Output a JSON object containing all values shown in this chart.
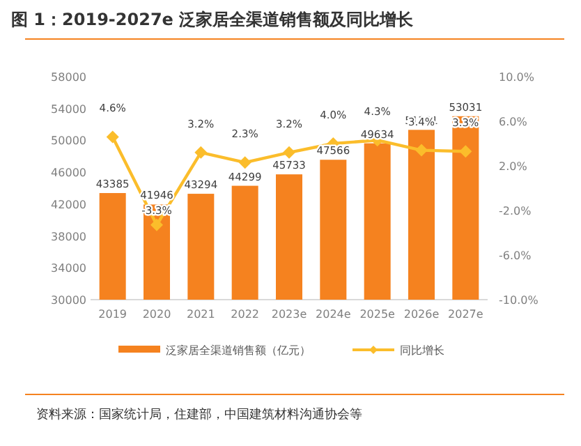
{
  "chart_data": {
    "type": "bar",
    "title": "图 1：2019-2027e 泛家居全渠道销售额及同比增长",
    "categories": [
      "2019",
      "2020",
      "2021",
      "2022",
      "2023e",
      "2024e",
      "2025e",
      "2026e",
      "2027e"
    ],
    "series": [
      {
        "name": "泛家居全渠道销售额（亿元）",
        "color": "#f5821f",
        "values": [
          43385,
          41946,
          43294,
          44299,
          45733,
          47566,
          49634,
          51321,
          53031
        ],
        "data_labels": true
      },
      {
        "name": "同比增长",
        "type": "line",
        "axis": "y2",
        "color": "#fbbd2b",
        "marker": "diamond",
        "values": [
          4.6,
          -3.3,
          3.2,
          2.3,
          3.2,
          4.0,
          4.3,
          3.4,
          3.3
        ],
        "value_labels": [
          "4.6%",
          "-3.3%",
          "3.2%",
          "2.3%",
          "3.2%",
          "4.0%",
          "4.3%",
          "3.4%",
          "3.3%"
        ]
      }
    ],
    "ylim": [
      30000,
      58000
    ],
    "yticks": [
      30000,
      34000,
      38000,
      42000,
      46000,
      50000,
      54000,
      58000
    ],
    "y2lim": [
      -10,
      10
    ],
    "y2ticks": [
      {
        "value": -10,
        "label": "-10.0%"
      },
      {
        "value": -6,
        "label": "-6.0%"
      },
      {
        "value": -2,
        "label": "-2.0%"
      },
      {
        "value": 2,
        "label": "2.0%"
      },
      {
        "value": 6,
        "label": "6.0%"
      },
      {
        "value": 10,
        "label": "10.0%"
      }
    ],
    "grid": false,
    "legend": "bottom",
    "annotations": [
      "资料来源：国家统计局，住建部，中国建筑材料沟通协会等"
    ]
  }
}
